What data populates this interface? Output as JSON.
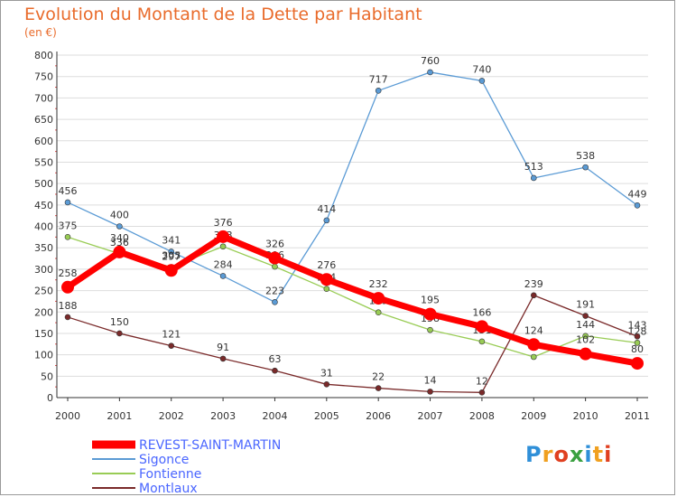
{
  "header": {
    "title": "Evolution du Montant de la Dette par Habitant",
    "subtitle": "(en €)"
  },
  "colors": {
    "title": "#e96b2b",
    "grid": "#dddddd",
    "axis": "#333333",
    "minor_tick": "#e05050"
  },
  "logo": {
    "text": "Proxiti",
    "letters": [
      {
        "ch": "P",
        "color": "#2f8fd8"
      },
      {
        "ch": "r",
        "color": "#f0a020"
      },
      {
        "ch": "o",
        "color": "#e04020"
      },
      {
        "ch": "x",
        "color": "#3aa040"
      },
      {
        "ch": "i",
        "color": "#2f8fd8"
      },
      {
        "ch": "t",
        "color": "#f0a020"
      },
      {
        "ch": "i",
        "color": "#e04020"
      }
    ]
  },
  "chart_data": {
    "type": "line",
    "x": [
      "2000",
      "2001",
      "2002",
      "2003",
      "2004",
      "2005",
      "2006",
      "2007",
      "2008",
      "2009",
      "2010",
      "2011"
    ],
    "ylim": [
      0,
      800
    ],
    "yticks": [
      0,
      50,
      100,
      150,
      200,
      250,
      300,
      350,
      400,
      450,
      500,
      550,
      600,
      650,
      700,
      750,
      800
    ],
    "grid": true,
    "legend_position": "bottom-left",
    "series": [
      {
        "name": "Sigonce",
        "color": "#5b9bd5",
        "label_color": "#333333",
        "values": [
          456,
          400,
          341,
          284,
          223,
          414,
          717,
          760,
          740,
          513,
          538,
          449
        ]
      },
      {
        "name": "Fontienne",
        "color": "#99cc55",
        "label_color": "#333333",
        "values": [
          375,
          336,
          305,
          353,
          306,
          254,
          199,
          158,
          131,
          95,
          144,
          128
        ]
      },
      {
        "name": "Montlaux",
        "color": "#7a2a2a",
        "label_color": "#333333",
        "values": [
          188,
          150,
          121,
          91,
          63,
          31,
          22,
          14,
          12,
          239,
          191,
          143
        ]
      },
      {
        "name": "REVEST-SAINT-MARTIN",
        "color": "#ff0000",
        "label_color": "#333333",
        "values": [
          258,
          340,
          297,
          376,
          326,
          276,
          232,
          195,
          166,
          124,
          102,
          80
        ],
        "bold": true
      }
    ],
    "legend": [
      {
        "name": "REVEST-SAINT-MARTIN",
        "color": "#ff0000",
        "text_color": "#4a66ff"
      },
      {
        "name": "Sigonce",
        "color": "#5b9bd5",
        "text_color": "#4a66ff"
      },
      {
        "name": "Fontienne",
        "color": "#99cc55",
        "text_color": "#4a66ff"
      },
      {
        "name": "Montlaux",
        "color": "#7a2a2a",
        "text_color": "#4a66ff"
      }
    ]
  }
}
